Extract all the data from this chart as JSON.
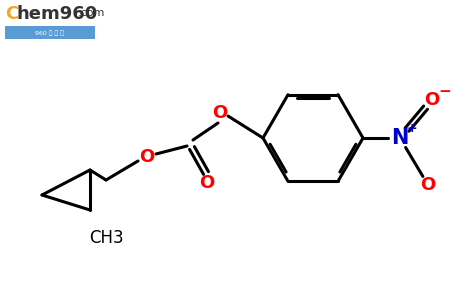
{
  "background_color": "#ffffff",
  "bond_color": "#000000",
  "oxygen_color": "#ff0000",
  "nitrogen_color": "#0000cc",
  "ch3_text": "CH3",
  "o_label": "O",
  "n_label": "N",
  "plus_label": "+",
  "minus_label": "−",
  "figsize": [
    4.74,
    2.93
  ],
  "dpi": 100,
  "lw": 2.2
}
